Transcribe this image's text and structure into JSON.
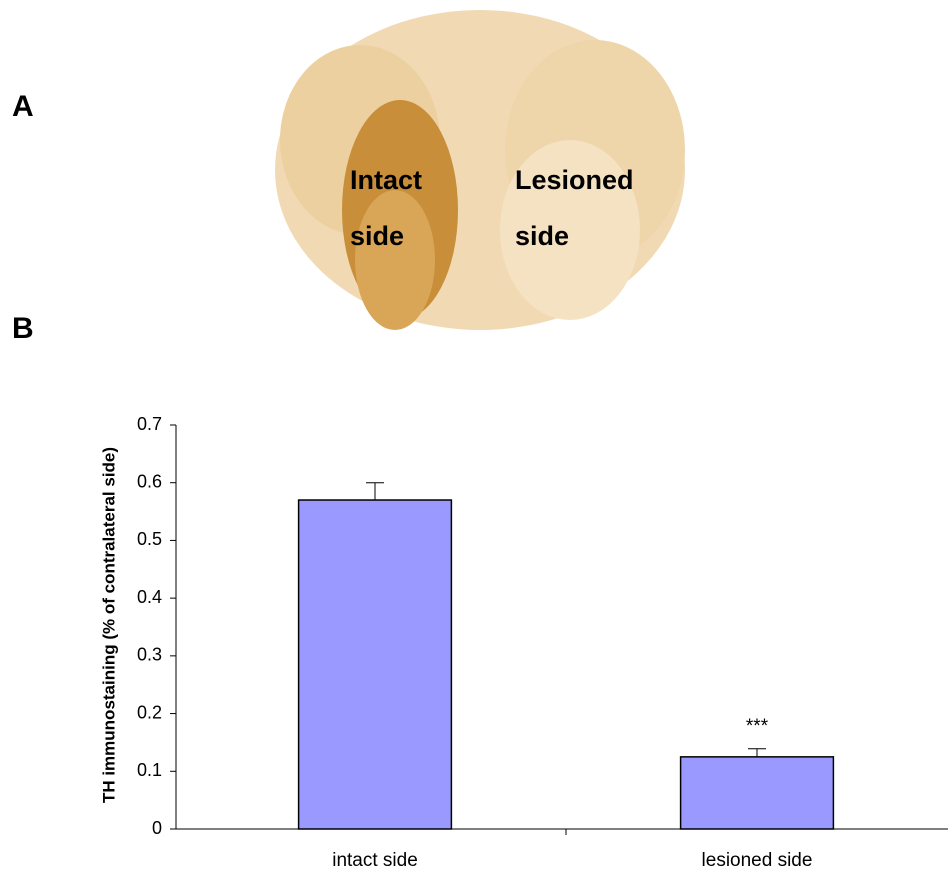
{
  "panel_a": {
    "label": "A",
    "photo_labels": [
      [
        "Intact",
        "side"
      ],
      [
        "Lesioned",
        "side"
      ]
    ]
  },
  "panel_b": {
    "label": "B"
  },
  "chart_data": {
    "type": "bar",
    "y_label": "TH immunostaining (% of contralateral side)",
    "categories": [
      "intact side",
      "lesioned side"
    ],
    "values": [
      0.57,
      0.125
    ],
    "errors": [
      0.03,
      0.014
    ],
    "annotations": [
      null,
      "***"
    ],
    "color": "#9999ff",
    "ylim": [
      0,
      0.7
    ],
    "yticks": [
      0,
      0.1,
      0.2,
      0.3,
      0.4,
      0.5,
      0.6,
      0.7
    ]
  }
}
